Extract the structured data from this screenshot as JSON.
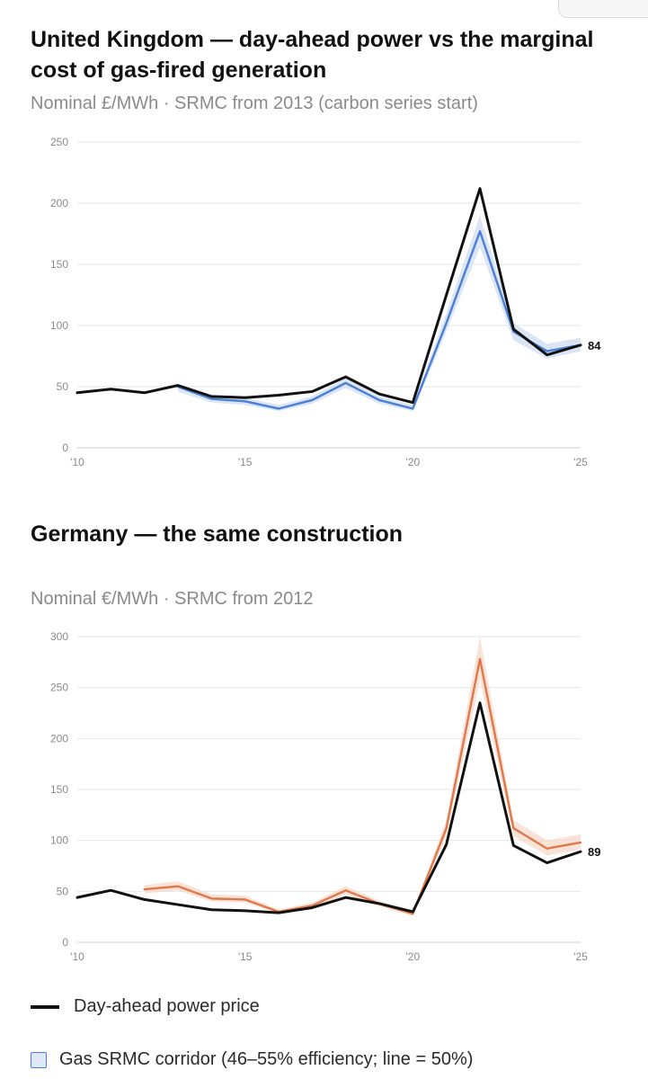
{
  "chart_data": [
    {
      "type": "line",
      "title": "United Kingdom — day-ahead power vs the marginal cost of gas-fired generation",
      "subtitle": "Nominal £/MWh · SRMC from 2013 (carbon series start)",
      "x": [
        2010,
        2011,
        2012,
        2013,
        2014,
        2015,
        2016,
        2017,
        2018,
        2019,
        2020,
        2021,
        2022,
        2023,
        2024,
        2025
      ],
      "xticks": [
        "'10",
        "'15",
        "'20",
        "'25"
      ],
      "yticks": [
        0,
        50,
        100,
        150,
        200,
        250
      ],
      "ylim": [
        0,
        250
      ],
      "xlim": [
        2010,
        2025
      ],
      "grid": true,
      "end_label": "84",
      "series": [
        {
          "name": "Day-ahead power price",
          "color": "#111111",
          "values": [
            45,
            48,
            45,
            51,
            42,
            41,
            43,
            46,
            58,
            44,
            37,
            125,
            212,
            97,
            76,
            84
          ]
        },
        {
          "name": "Gas SRMC corridor (46–55% efficiency; line = 50%)",
          "color": "#4a7fd4",
          "band_color": "#cfdcf3",
          "values": [
            null,
            null,
            null,
            50,
            40,
            38,
            32,
            39,
            53,
            39,
            32,
            102,
            177,
            95,
            79,
            84
          ],
          "low": [
            null,
            null,
            null,
            46,
            37,
            35,
            30,
            36,
            49,
            36,
            30,
            95,
            164,
            88,
            73,
            79
          ],
          "high": [
            null,
            null,
            null,
            52,
            43,
            41,
            35,
            42,
            57,
            42,
            35,
            110,
            190,
            102,
            85,
            90
          ]
        }
      ]
    },
    {
      "type": "line",
      "title": "Germany — the same construction",
      "subtitle": "Nominal €/MWh · SRMC from 2012",
      "x": [
        2010,
        2011,
        2012,
        2013,
        2014,
        2015,
        2016,
        2017,
        2018,
        2019,
        2020,
        2021,
        2022,
        2023,
        2024,
        2025
      ],
      "xticks": [
        "'10",
        "'15",
        "'20",
        "'25"
      ],
      "yticks": [
        0,
        50,
        100,
        150,
        200,
        250,
        300
      ],
      "ylim": [
        0,
        300
      ],
      "xlim": [
        2010,
        2025
      ],
      "grid": true,
      "end_label": "89",
      "series": [
        {
          "name": "Day-ahead power price",
          "color": "#111111",
          "values": [
            44,
            51,
            42,
            37,
            32,
            31,
            29,
            34,
            44,
            38,
            30,
            96,
            235,
            95,
            78,
            89
          ]
        },
        {
          "name": "Gas SRMC corridor (46–55% efficiency; line = 50%)",
          "color": "#e0784a",
          "band_color": "#f6d9cc",
          "values": [
            null,
            null,
            52,
            55,
            43,
            42,
            30,
            36,
            51,
            38,
            28,
            112,
            278,
            112,
            92,
            98
          ],
          "low": [
            null,
            null,
            48,
            51,
            40,
            39,
            28,
            33,
            47,
            35,
            26,
            104,
            258,
            104,
            85,
            91
          ],
          "high": [
            null,
            null,
            56,
            60,
            47,
            46,
            32,
            39,
            55,
            41,
            30,
            120,
            300,
            120,
            100,
            106
          ]
        }
      ]
    }
  ],
  "legend": {
    "power_label": "Day-ahead power price",
    "srmc_label": "Gas SRMC corridor (46–55% efficiency; line = 50%)"
  }
}
